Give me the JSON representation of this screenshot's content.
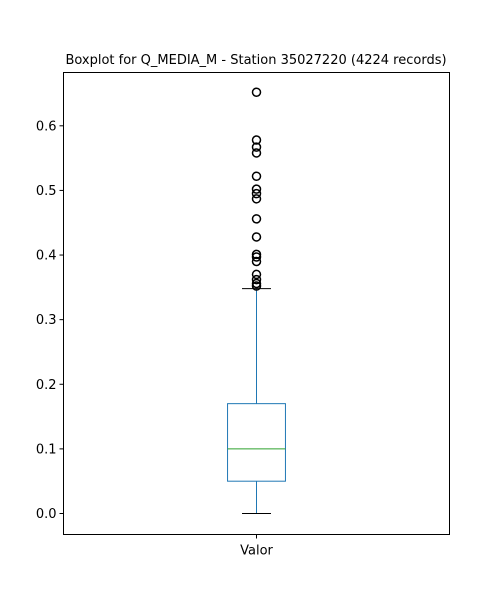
{
  "chart_data": {
    "type": "box",
    "title": "Boxplot for Q_MEDIA_M - Station 35027220 (4224 records)",
    "xlabel": "",
    "ylabel": "",
    "categories": [
      "Valor"
    ],
    "ylim": [
      -0.0325,
      0.6825
    ],
    "yticks": [
      0.0,
      0.1,
      0.2,
      0.3,
      0.4,
      0.5,
      0.6
    ],
    "ytick_labels": [
      "0.0",
      "0.1",
      "0.2",
      "0.3",
      "0.4",
      "0.5",
      "0.6"
    ],
    "grid": false,
    "boxes": [
      {
        "category": "Valor",
        "whisker_low": 0.0,
        "q1": 0.05,
        "median": 0.1,
        "q3": 0.17,
        "whisker_high": 0.348,
        "outliers": [
          0.352,
          0.356,
          0.362,
          0.37,
          0.39,
          0.397,
          0.401,
          0.428,
          0.456,
          0.487,
          0.495,
          0.502,
          0.522,
          0.558,
          0.567,
          0.578,
          0.652
        ]
      }
    ],
    "colors": {
      "box": "#1f77b4",
      "whisker": "#1f77b4",
      "cap": "#000000",
      "median": "#2ca02c",
      "flier": "#000000"
    }
  }
}
